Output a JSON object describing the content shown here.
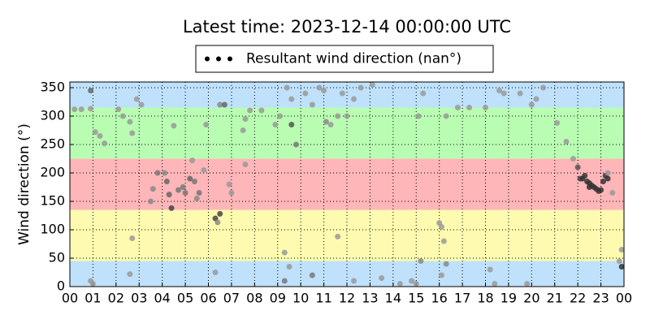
{
  "chart_data": {
    "type": "scatter",
    "title": "Latest time: 2023-12-14 00:00:00 UTC",
    "y_label": "Wind direction (°)",
    "xlim": [
      0,
      24
    ],
    "ylim": [
      0,
      360
    ],
    "xticks": [
      {
        "value": 0,
        "label": "00"
      },
      {
        "value": 1,
        "label": "01"
      },
      {
        "value": 2,
        "label": "02"
      },
      {
        "value": 3,
        "label": "03"
      },
      {
        "value": 4,
        "label": "04"
      },
      {
        "value": 5,
        "label": "05"
      },
      {
        "value": 6,
        "label": "06"
      },
      {
        "value": 7,
        "label": "07"
      },
      {
        "value": 8,
        "label": "08"
      },
      {
        "value": 9,
        "label": "09"
      },
      {
        "value": 10,
        "label": "10"
      },
      {
        "value": 11,
        "label": "11"
      },
      {
        "value": 12,
        "label": "12"
      },
      {
        "value": 13,
        "label": "13"
      },
      {
        "value": 14,
        "label": "14"
      },
      {
        "value": 15,
        "label": "15"
      },
      {
        "value": 16,
        "label": "16"
      },
      {
        "value": 17,
        "label": "17"
      },
      {
        "value": 18,
        "label": "18"
      },
      {
        "value": 19,
        "label": "19"
      },
      {
        "value": 20,
        "label": "20"
      },
      {
        "value": 21,
        "label": "21"
      },
      {
        "value": 22,
        "label": "22"
      },
      {
        "value": 23,
        "label": "23"
      },
      {
        "value": 24,
        "label": "00"
      }
    ],
    "yticks": [
      0,
      50,
      100,
      150,
      200,
      250,
      300,
      350
    ],
    "grid": true,
    "bands": [
      {
        "range": [
          0,
          45
        ],
        "color": "#bfe1fb"
      },
      {
        "range": [
          45,
          135
        ],
        "color": "#fefbb0"
      },
      {
        "range": [
          135,
          225
        ],
        "color": "#feb6b8"
      },
      {
        "range": [
          225,
          315
        ],
        "color": "#b9fdb3"
      },
      {
        "range": [
          315,
          360
        ],
        "color": "#bfe1fb"
      }
    ],
    "legend": "top",
    "series": [
      {
        "name": "Resultant wind direction (nan°)",
        "color": "#000000",
        "x": [
          0.9,
          0.2,
          0.5,
          0.9,
          1.1,
          1.3,
          1.5,
          0.9,
          1.0,
          2.1,
          2.3,
          2.6,
          2.7,
          2.9,
          3.1,
          2.7,
          2.6,
          3.5,
          3.6,
          3.8,
          4.1,
          4.2,
          4.3,
          4.4,
          4.5,
          4.7,
          4.9,
          5.0,
          5.2,
          5.3,
          5.4,
          5.5,
          5.6,
          5.8,
          5.9,
          6.3,
          6.4,
          6.5,
          6.5,
          6.7,
          6.9,
          7.0,
          6.3,
          7.5,
          7.6,
          7.8,
          7.6,
          8.3,
          8.9,
          9.1,
          9.3,
          9.3,
          9.4,
          9.6,
          9.6,
          9.5,
          9.8,
          10.2,
          10.5,
          10.5,
          10.8,
          11.0,
          11.1,
          11.3,
          11.6,
          11.8,
          11.6,
          12.0,
          12.3,
          12.3,
          12.6,
          13.1,
          13.5,
          14.3,
          14.8,
          15.0,
          15.2,
          15.1,
          15.3,
          16.0,
          16.1,
          16.2,
          16.3,
          16.3,
          16.1,
          16.8,
          17.3,
          18.0,
          18.2,
          18.4,
          18.6,
          18.8,
          19.5,
          19.8,
          20.0,
          20.2,
          20.5,
          21.1,
          21.5,
          21.8,
          22.0,
          22.1,
          22.2,
          22.3,
          22.4,
          22.5,
          22.5,
          22.6,
          22.7,
          22.8,
          22.9,
          23.0,
          23.1,
          23.2,
          23.3,
          23.3,
          23.5,
          23.8,
          23.9,
          23.9
        ],
        "values": [
          345,
          312,
          312,
          313,
          272,
          265,
          252,
          10,
          5,
          312,
          300,
          290,
          270,
          330,
          320,
          85,
          22,
          150,
          172,
          200,
          200,
          185,
          162,
          138,
          283,
          170,
          175,
          165,
          190,
          222,
          185,
          155,
          165,
          205,
          285,
          120,
          113,
          128,
          320,
          320,
          180,
          165,
          25,
          275,
          295,
          310,
          215,
          310,
          285,
          300,
          60,
          10,
          350,
          330,
          285,
          35,
          250,
          340,
          320,
          20,
          350,
          345,
          290,
          285,
          300,
          340,
          88,
          300,
          330,
          10,
          350,
          355,
          15,
          5,
          10,
          5,
          45,
          300,
          340,
          112,
          105,
          80,
          40,
          300,
          20,
          315,
          315,
          315,
          30,
          5,
          345,
          340,
          340,
          5,
          320,
          330,
          350,
          288,
          255,
          225,
          210,
          190,
          190,
          195,
          185,
          182,
          175,
          178,
          175,
          172,
          168,
          170,
          185,
          195,
          190,
          200,
          165,
          45,
          65,
          35
        ],
        "colors": [
          "#666",
          "#999",
          "#999",
          "#999",
          "#999",
          "#999",
          "#999",
          "#999",
          "#999",
          "#999",
          "#999",
          "#999",
          "#999",
          "#999",
          "#999",
          "#999",
          "#999",
          "#888",
          "#888",
          "#777",
          "#888",
          "#666",
          "#666",
          "#444",
          "#999",
          "#777",
          "#777",
          "#777",
          "#666",
          "#999",
          "#777",
          "#888",
          "#777",
          "#999",
          "#999",
          "#444",
          "#888",
          "#444",
          "#888",
          "#666",
          "#999",
          "#999",
          "#999",
          "#999",
          "#999",
          "#999",
          "#999",
          "#999",
          "#999",
          "#999",
          "#999",
          "#777",
          "#999",
          "#999",
          "#555",
          "#999",
          "#777",
          "#999",
          "#999",
          "#777",
          "#999",
          "#999",
          "#888",
          "#999",
          "#999",
          "#999",
          "#999",
          "#999",
          "#999",
          "#999",
          "#999",
          "#999",
          "#999",
          "#999",
          "#999",
          "#999",
          "#888",
          "#999",
          "#999",
          "#999",
          "#999",
          "#999",
          "#888",
          "#999",
          "#999",
          "#999",
          "#999",
          "#999",
          "#999",
          "#999",
          "#999",
          "#999",
          "#999",
          "#999",
          "#999",
          "#999",
          "#999",
          "#999",
          "#999",
          "#999",
          "#555",
          "#444",
          "#333",
          "#333",
          "#333",
          "#333",
          "#333",
          "#333",
          "#333",
          "#333",
          "#333",
          "#333",
          "#333",
          "#333",
          "#333",
          "#999",
          "#999",
          "#999",
          "#999",
          "#333"
        ]
      }
    ]
  }
}
